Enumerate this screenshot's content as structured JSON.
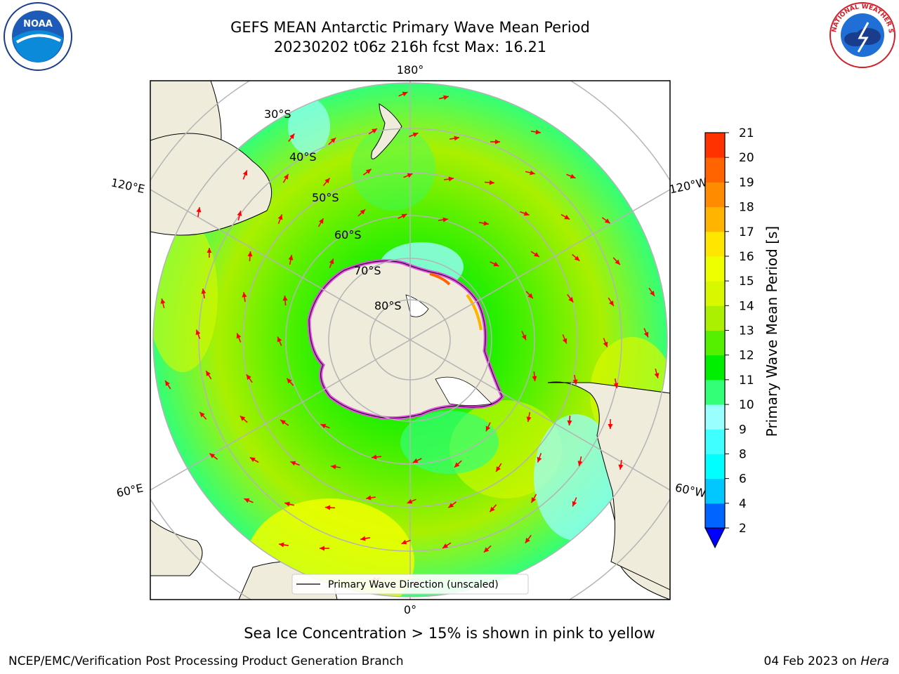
{
  "title": {
    "line1": "GEFS MEAN Antarctic Primary Wave Mean Period",
    "line2": "20230202 t06z 216h fcst   Max: 16.21"
  },
  "map": {
    "meridian_labels": {
      "top": "180°",
      "bottom": "0°",
      "left_upper": "120°E",
      "left_lower": "60°E",
      "right_upper": "120°W",
      "right_lower": "60°W"
    },
    "latitude_labels": [
      "30°S",
      "40°S",
      "50°S",
      "60°S",
      "70°S",
      "80°S"
    ],
    "legend_label": "Primary Wave Direction (unscaled)",
    "colors": {
      "land": "#efecdb",
      "ice_edge": "#e64ee6",
      "arrow": "#ff0000",
      "gridline": "#b4b4b4"
    }
  },
  "colorbar": {
    "label": "Primary Wave Mean Period [s]",
    "ticks": [
      "2",
      "4",
      "6",
      "8",
      "9",
      "10",
      "11",
      "12",
      "13",
      "14",
      "15",
      "16",
      "17",
      "18",
      "19",
      "20",
      "21"
    ],
    "colors": [
      "#0064ff",
      "#00c8ff",
      "#00ffff",
      "#40ffff",
      "#99ffff",
      "#33ff77",
      "#00ee00",
      "#55f000",
      "#aaf000",
      "#d8f800",
      "#eeff00",
      "#ffe600",
      "#ffb400",
      "#ff8c00",
      "#ff6400",
      "#ff3200",
      "#ff0000"
    ],
    "extend_color": "#0000ff"
  },
  "caption": "Sea Ice Concentration > 15% is shown in pink to yellow",
  "footer": {
    "org": "NCEP/EMC/Verification Post Processing Product Generation Branch",
    "date": "04 Feb 2023 on ",
    "host": "Hera"
  },
  "logos": {
    "noaa": "NOAA",
    "nws_ring": "NATIONAL WEATHER SERVICE"
  }
}
